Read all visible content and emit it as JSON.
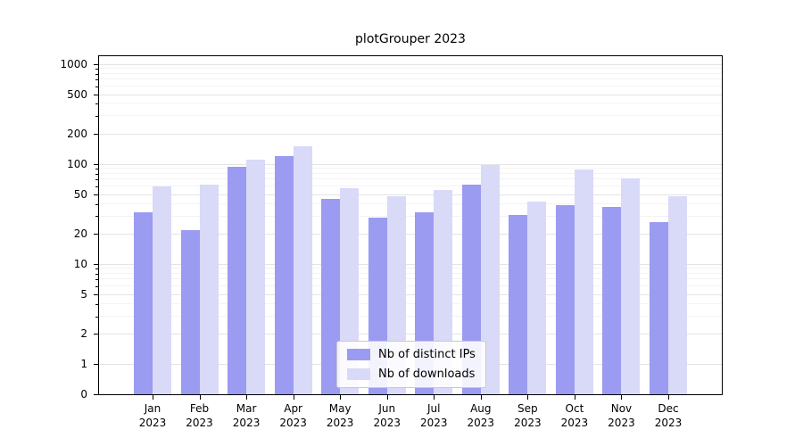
{
  "chart_data": {
    "type": "bar",
    "title": "plotGrouper 2023",
    "categories": [
      "Jan 2023",
      "Feb 2023",
      "Mar 2023",
      "Apr 2023",
      "May 2023",
      "Jun 2023",
      "Jul 2023",
      "Aug 2023",
      "Sep 2023",
      "Oct 2023",
      "Nov 2023",
      "Dec 2023"
    ],
    "series": [
      {
        "name": "Nb of distinct IPs",
        "color": "#9b9bf2",
        "values": [
          33,
          22,
          93,
          120,
          45,
          29,
          33,
          62,
          31,
          39,
          37,
          26
        ]
      },
      {
        "name": "Nb of downloads",
        "color": "#d9d9f8",
        "values": [
          60,
          62,
          110,
          150,
          57,
          48,
          55,
          97,
          42,
          88,
          72,
          48
        ]
      }
    ],
    "yscale": "symlog",
    "yticks": [
      0,
      1,
      2,
      5,
      10,
      20,
      50,
      100,
      200,
      500,
      1000
    ],
    "ylim": [
      0,
      1200
    ],
    "grid": true,
    "legend": {
      "position": "lower center",
      "entries": [
        "Nb of distinct IPs",
        "Nb of downloads"
      ]
    }
  }
}
